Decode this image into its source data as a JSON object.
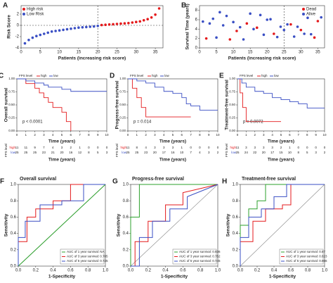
{
  "chart_data": [
    {
      "type": "scatter",
      "panel": "A",
      "xlabel": "Patients (increasing risk score)",
      "ylabel": "Risk Score",
      "xlim": [
        0,
        37
      ],
      "ylim": [
        -4,
        3.5
      ],
      "xticks": [
        0,
        5,
        10,
        15,
        20,
        25,
        30,
        35
      ],
      "yticks": [
        -4,
        -2,
        0,
        2
      ],
      "vline": 20,
      "hline": 0,
      "legend": "top-left",
      "series": [
        {
          "name": "High risk",
          "color": "#e41a1c",
          "x": [
            21,
            22,
            23,
            24,
            25,
            26,
            27,
            28,
            29,
            30,
            31,
            32,
            33,
            34,
            35,
            36
          ],
          "values": [
            0.05,
            0.1,
            0.15,
            0.2,
            0.25,
            0.3,
            0.35,
            0.4,
            0.5,
            0.6,
            0.7,
            0.9,
            1.1,
            1.4,
            1.9,
            3.0
          ]
        },
        {
          "name": "Low Risk",
          "color": "#3a4fc4",
          "x": [
            1,
            2,
            3,
            4,
            5,
            6,
            7,
            8,
            9,
            10,
            11,
            12,
            13,
            14,
            15,
            16,
            17,
            18,
            19,
            20
          ],
          "values": [
            -3.2,
            -2.6,
            -2.2,
            -1.9,
            -1.7,
            -1.5,
            -1.3,
            -1.1,
            -1.0,
            -0.9,
            -0.8,
            -0.7,
            -0.6,
            -0.5,
            -0.4,
            -0.35,
            -0.3,
            -0.25,
            -0.2,
            -0.1
          ]
        }
      ]
    },
    {
      "type": "scatter",
      "panel": "B",
      "xlabel": "Patients (increasing risk score)",
      "ylabel": "Survival Time (years)",
      "xlim": [
        0,
        37
      ],
      "ylim": [
        0,
        9
      ],
      "xticks": [
        0,
        5,
        10,
        15,
        20,
        25,
        30,
        35
      ],
      "yticks": [
        0,
        2,
        4,
        6,
        8
      ],
      "vline": 25,
      "legend": "top-right",
      "series": [
        {
          "name": "Dead",
          "color": "#e41a1c",
          "x": [
            2,
            9,
            11,
            14,
            17,
            22,
            27,
            30,
            34,
            35
          ],
          "values": [
            2,
            1.8,
            3.6,
            5.2,
            4.3,
            3.0,
            5.0,
            3.8,
            2.2,
            5.7
          ]
        },
        {
          "name": "Alive",
          "color": "#3a4fc4",
          "x": [
            1,
            3,
            4,
            5,
            6,
            7,
            8,
            10,
            12,
            13,
            15,
            16,
            18,
            19,
            20,
            21,
            23,
            24,
            25,
            26,
            28,
            29,
            31,
            32,
            33,
            36
          ],
          "values": [
            5.6,
            5.2,
            6.2,
            2.2,
            7.6,
            4.8,
            6.8,
            5.5,
            4.4,
            1.8,
            7.3,
            4.0,
            7.0,
            2.8,
            6.0,
            6.1,
            2.3,
            4.5,
            3.8,
            5.0,
            2.4,
            4.5,
            3.0,
            6.4,
            2.9,
            6.5
          ]
        }
      ]
    },
    {
      "type": "km",
      "panel": "C",
      "xlabel": "Time (years)",
      "ylabel": "Overall survival",
      "p_label": "p < 0.0001",
      "legend_title": "FPS level",
      "xlim": [
        0,
        10
      ],
      "ylim": [
        0,
        1
      ],
      "xticks": [
        0,
        1,
        2,
        3,
        4,
        5,
        6,
        7,
        8,
        9,
        10
      ],
      "yticks": [
        {
          "value": 0,
          "label": "0.00"
        },
        {
          "value": 0.25,
          "label": "0.25"
        },
        {
          "value": 0.5,
          "label": "0.50"
        },
        {
          "value": 0.75,
          "label": "0.75"
        },
        {
          "value": 1,
          "label": "1.00"
        }
      ],
      "series": [
        {
          "name": "high",
          "color": "#e41a1c",
          "x": [
            0,
            1,
            2,
            2.5,
            3,
            3.5,
            4,
            5,
            5.5,
            6
          ],
          "values": [
            1,
            0.91,
            0.82,
            0.73,
            0.64,
            0.55,
            0.45,
            0.36,
            0.18,
            0
          ]
        },
        {
          "name": "low",
          "color": "#3a4fc4",
          "x": [
            0,
            1,
            2,
            3,
            3.5,
            5,
            6,
            7,
            10
          ],
          "values": [
            1,
            0.96,
            0.92,
            0.88,
            0.84,
            0.8,
            0.76,
            0.76,
            0.76
          ]
        }
      ],
      "risk_table": {
        "title": "FPS level",
        "xlabel": "Time (years)",
        "rows": [
          {
            "name": "high",
            "color": "#e41a1c",
            "values": [
              11,
              11,
              9,
              7,
              4,
              3,
              2,
              1,
              0,
              0,
              0
            ]
          },
          {
            "name": "low",
            "color": "#3a4fc4",
            "values": [
              25,
              25,
              25,
              23,
              21,
              20,
              16,
              12,
              8,
              5,
              3
            ]
          }
        ]
      }
    },
    {
      "type": "km",
      "panel": "D",
      "xlabel": "Time (years)",
      "ylabel": "Progress-free survival",
      "p_label": "p = 0.014",
      "legend_title": "FPS level",
      "xlim": [
        0,
        10
      ],
      "ylim": [
        0,
        1
      ],
      "xticks": [
        0,
        1,
        2,
        3,
        4,
        5,
        6,
        7,
        8,
        9,
        10
      ],
      "yticks": [
        {
          "value": 0,
          "label": "0.00"
        },
        {
          "value": 0.25,
          "label": "0.25"
        },
        {
          "value": 0.5,
          "label": "0.50"
        },
        {
          "value": 0.75,
          "label": "0.75"
        },
        {
          "value": 1,
          "label": "1.00"
        }
      ],
      "series": [
        {
          "name": "high",
          "color": "#e41a1c",
          "x": [
            0,
            0.5,
            1,
            1.5,
            2,
            7
          ],
          "values": [
            1,
            0.82,
            0.64,
            0.45,
            0.27,
            0.27
          ]
        },
        {
          "name": "low",
          "color": "#3a4fc4",
          "x": [
            0,
            1,
            2,
            3,
            4,
            5,
            6,
            6.5,
            7,
            8,
            10
          ],
          "values": [
            1,
            0.96,
            0.92,
            0.84,
            0.76,
            0.72,
            0.64,
            0.52,
            0.48,
            0.4,
            0.4
          ]
        }
      ],
      "risk_table": {
        "title": "FPS level",
        "xlabel": "Time (years)",
        "rows": [
          {
            "name": "high",
            "color": "#e41a1c",
            "values": [
              11,
              8,
              4,
              3,
              3,
              3,
              1,
              0,
              0,
              0,
              0
            ]
          },
          {
            "name": "low",
            "color": "#3a4fc4",
            "values": [
              25,
              25,
              23,
              20,
              17,
              16,
              10,
              7,
              4,
              3,
              2
            ]
          }
        ]
      }
    },
    {
      "type": "km",
      "panel": "E",
      "xlabel": "Time (years)",
      "ylabel": "Treatment-free survival",
      "p_label": "p = 0.0072",
      "legend_title": "FPS level",
      "xlim": [
        0,
        10
      ],
      "ylim": [
        0,
        1
      ],
      "xticks": [
        0,
        1,
        2,
        3,
        4,
        5,
        6,
        7,
        8,
        9,
        10
      ],
      "yticks": [
        {
          "value": 0,
          "label": "0.00"
        },
        {
          "value": 0.25,
          "label": "0.25"
        },
        {
          "value": 0.5,
          "label": "0.50"
        },
        {
          "value": 0.75,
          "label": "0.75"
        },
        {
          "value": 1,
          "label": "1.00"
        }
      ],
      "series": [
        {
          "name": "high",
          "color": "#e41a1c",
          "x": [
            0,
            0.3,
            0.6,
            1,
            5
          ],
          "values": [
            1,
            0.73,
            0.45,
            0.18,
            0.18
          ]
        },
        {
          "name": "low",
          "color": "#3a4fc4",
          "x": [
            0,
            0.5,
            1,
            2,
            3,
            4,
            5,
            6,
            7,
            8,
            10
          ],
          "values": [
            1,
            0.92,
            0.84,
            0.76,
            0.72,
            0.64,
            0.6,
            0.56,
            0.52,
            0.44,
            0.44
          ]
        }
      ],
      "risk_table": {
        "title": "FPS level",
        "xlabel": "Time (years)",
        "rows": [
          {
            "name": "high",
            "color": "#e41a1c",
            "values": [
              11,
              3,
              3,
              3,
              3,
              2,
              1,
              0,
              0,
              0,
              0
            ]
          },
          {
            "name": "low",
            "color": "#3a4fc4",
            "values": [
              25,
              24,
              22,
              20,
              17,
              15,
              10,
              8,
              5,
              3,
              2
            ]
          }
        ]
      }
    },
    {
      "type": "roc",
      "panel": "F",
      "title": "Overall survival",
      "xlabel": "1-Specificity",
      "ylabel": "Sensitivity",
      "legend": "bottom-right",
      "xlim": [
        0,
        1
      ],
      "ylim": [
        0,
        1
      ],
      "xticks": [
        {
          "value": 0,
          "label": "0.0"
        },
        {
          "value": 0.2,
          "label": "0.2"
        },
        {
          "value": 0.4,
          "label": "0.4"
        },
        {
          "value": 0.6,
          "label": "0.6"
        },
        {
          "value": 0.8,
          "label": "0.8"
        },
        {
          "value": 1,
          "label": "1.0"
        }
      ],
      "yticks": [
        {
          "value": 0,
          "label": "0.0"
        },
        {
          "value": 0.2,
          "label": "0.2"
        },
        {
          "value": 0.4,
          "label": "0.4"
        },
        {
          "value": 0.6,
          "label": "0.6"
        },
        {
          "value": 0.8,
          "label": "0.8"
        },
        {
          "value": 1,
          "label": "1.0"
        }
      ],
      "series": [
        {
          "name": "AUC of 1 year survival: NA",
          "color": "#2ca02c",
          "x": [
            0,
            1
          ],
          "values": [
            0,
            1
          ]
        },
        {
          "name": "AUC of 3 year survival: 0.705",
          "color": "#e41a1c",
          "x": [
            0,
            0,
            0.1,
            0.1,
            0.2,
            0.2,
            0.4,
            0.4,
            0.6,
            0.6,
            1
          ],
          "values": [
            0,
            0.3,
            0.3,
            0.6,
            0.6,
            0.7,
            0.7,
            0.8,
            0.8,
            1,
            1
          ]
        },
        {
          "name": "AUC of 5 year survival: 0.725",
          "color": "#3a4fc4",
          "x": [
            0,
            0,
            0.08,
            0.08,
            0.25,
            0.25,
            0.5,
            0.5,
            0.75,
            0.75,
            1
          ],
          "values": [
            0,
            0.35,
            0.35,
            0.55,
            0.55,
            0.75,
            0.75,
            0.8,
            0.8,
            1,
            1
          ]
        }
      ]
    },
    {
      "type": "roc",
      "panel": "G",
      "title": "Progress-free survival",
      "xlabel": "1-Specificity",
      "ylabel": "Sensitivity",
      "legend": "bottom-right",
      "xlim": [
        0,
        1
      ],
      "ylim": [
        0,
        1
      ],
      "xticks": [
        {
          "value": 0,
          "label": "0.0"
        },
        {
          "value": 0.2,
          "label": "0.2"
        },
        {
          "value": 0.4,
          "label": "0.4"
        },
        {
          "value": 0.6,
          "label": "0.6"
        },
        {
          "value": 0.8,
          "label": "0.8"
        },
        {
          "value": 1,
          "label": "1.0"
        }
      ],
      "yticks": [
        {
          "value": 0,
          "label": "0.0"
        },
        {
          "value": 0.2,
          "label": "0.2"
        },
        {
          "value": 0.4,
          "label": "0.4"
        },
        {
          "value": 0.6,
          "label": "0.6"
        },
        {
          "value": 0.8,
          "label": "0.8"
        },
        {
          "value": 1,
          "label": "1.0"
        }
      ],
      "series": [
        {
          "name": "AUC of 1 year survival: 0.936",
          "color": "#2ca02c",
          "x": [
            0,
            0,
            0.1,
            0.1,
            1
          ],
          "values": [
            0,
            0.6,
            0.6,
            1,
            1
          ]
        },
        {
          "name": "AUC of 3 year survival: 0.752",
          "color": "#e41a1c",
          "x": [
            0,
            0.05,
            0.05,
            0.2,
            0.2,
            0.4,
            0.4,
            0.6,
            0.6,
            1
          ],
          "values": [
            0,
            0,
            0.3,
            0.3,
            0.55,
            0.55,
            0.75,
            0.75,
            0.9,
            1
          ]
        },
        {
          "name": "AUC of 5 year survival: 0.745",
          "color": "#3a4fc4",
          "x": [
            0,
            0.1,
            0.1,
            0.25,
            0.25,
            0.45,
            0.45,
            0.65,
            0.65,
            1
          ],
          "values": [
            0,
            0,
            0.35,
            0.35,
            0.55,
            0.55,
            0.7,
            0.7,
            0.85,
            1
          ]
        }
      ]
    },
    {
      "type": "roc",
      "panel": "H",
      "title": "Treatment-free survival",
      "xlabel": "1-Specificity",
      "ylabel": "Sensitivity",
      "legend": "bottom-right",
      "xlim": [
        0,
        1
      ],
      "ylim": [
        0,
        1
      ],
      "xticks": [
        {
          "value": 0,
          "label": "0.0"
        },
        {
          "value": 0.2,
          "label": "0.2"
        },
        {
          "value": 0.4,
          "label": "0.4"
        },
        {
          "value": 0.6,
          "label": "0.6"
        },
        {
          "value": 0.8,
          "label": "0.8"
        },
        {
          "value": 1,
          "label": "1.0"
        }
      ],
      "yticks": [
        {
          "value": 0,
          "label": "0.0"
        },
        {
          "value": 0.2,
          "label": "0.2"
        },
        {
          "value": 0.4,
          "label": "0.4"
        },
        {
          "value": 0.6,
          "label": "0.6"
        },
        {
          "value": 0.8,
          "label": "0.8"
        },
        {
          "value": 1,
          "label": "1.0"
        }
      ],
      "series": [
        {
          "name": "AUC of 1 year survival: 0.87",
          "color": "#2ca02c",
          "x": [
            0,
            0,
            0.1,
            0.1,
            0.2,
            0.2,
            0.3,
            0.3,
            1
          ],
          "values": [
            0,
            0.5,
            0.5,
            0.7,
            0.7,
            0.8,
            0.8,
            1,
            1
          ]
        },
        {
          "name": "AUC of 3 year survival: 0.823",
          "color": "#e41a1c",
          "x": [
            0,
            0,
            0.15,
            0.15,
            0.3,
            0.3,
            0.5,
            0.5,
            0.6,
            0.6,
            1
          ],
          "values": [
            0,
            0.3,
            0.3,
            0.55,
            0.55,
            0.7,
            0.7,
            0.75,
            0.75,
            1,
            1
          ]
        },
        {
          "name": "AUC of 5 year survival: 0.866",
          "color": "#3a4fc4",
          "x": [
            0,
            0,
            0.1,
            0.1,
            0.25,
            0.25,
            0.4,
            0.4,
            0.55,
            0.55,
            1
          ],
          "values": [
            0,
            0.35,
            0.35,
            0.6,
            0.6,
            0.7,
            0.7,
            0.85,
            0.85,
            1,
            1
          ]
        }
      ]
    }
  ]
}
